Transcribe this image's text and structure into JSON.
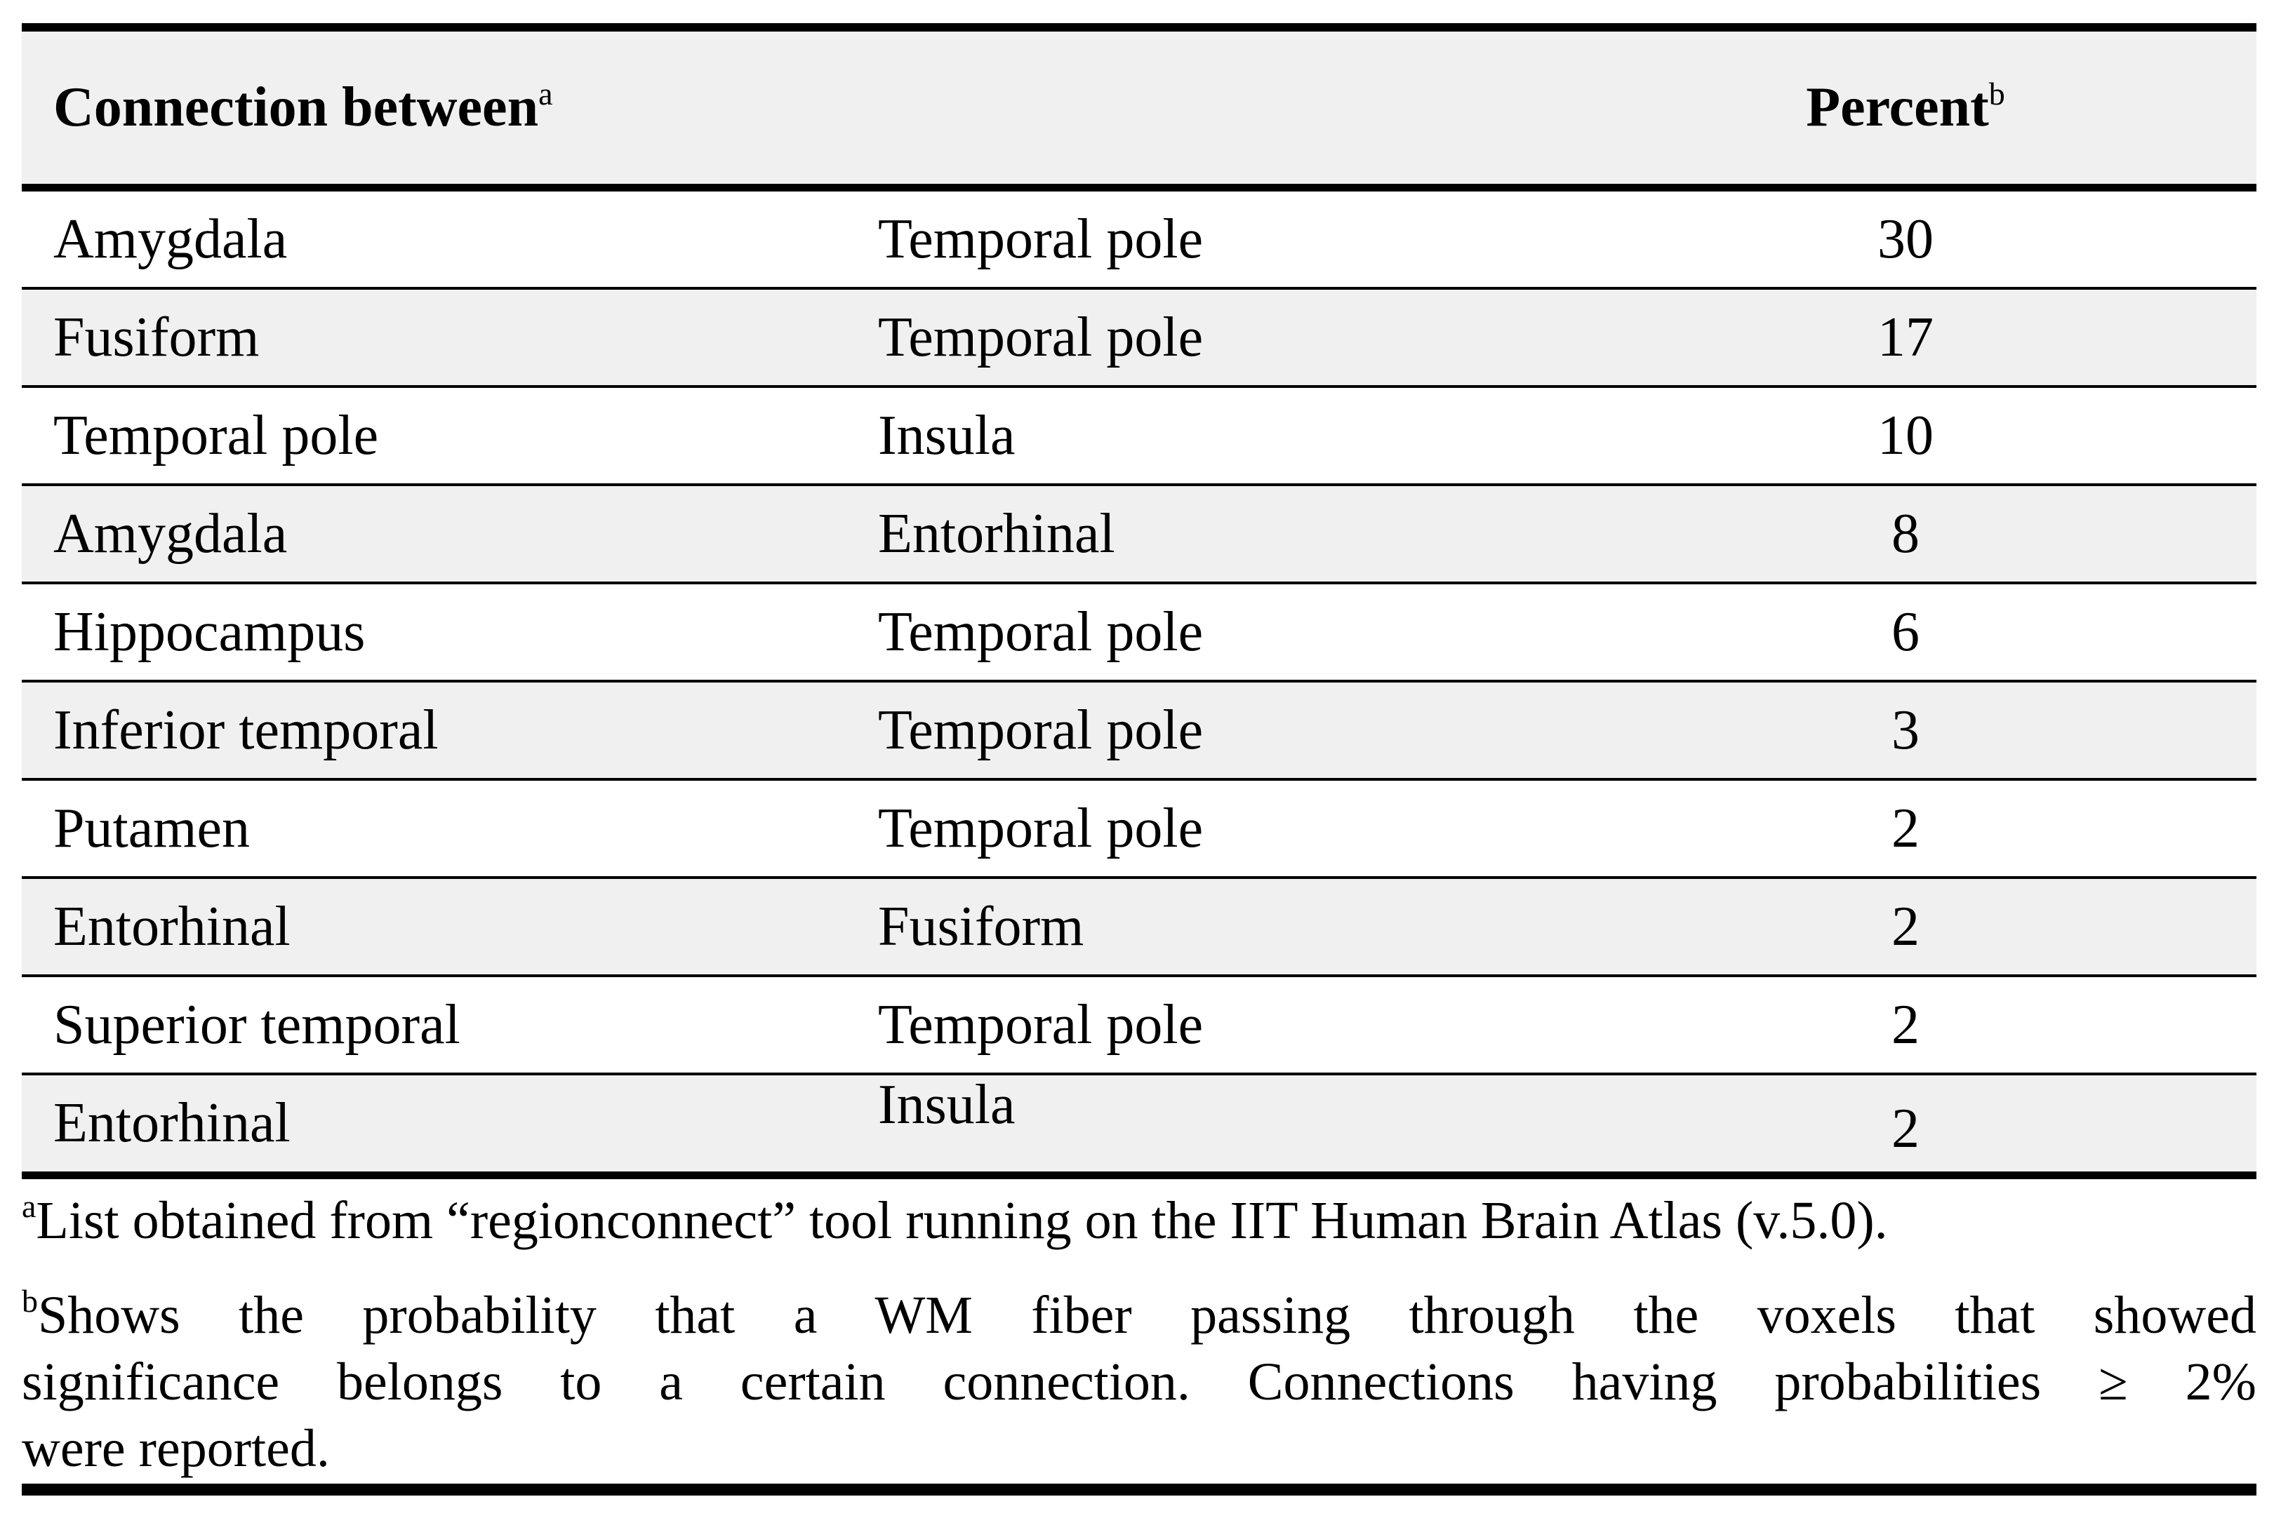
{
  "colors": {
    "stripe": "#f0f0f0",
    "rule": "#000000",
    "background": "#ffffff",
    "text": "#000000"
  },
  "table": {
    "header": {
      "connection_label": "Connection between",
      "connection_sup": "a",
      "percent_label": "Percent",
      "percent_sup": "b"
    },
    "rows": [
      {
        "region1": "Amygdala",
        "region2": "Temporal pole",
        "percent": "30"
      },
      {
        "region1": "Fusiform",
        "region2": "Temporal pole",
        "percent": "17"
      },
      {
        "region1": "Temporal pole",
        "region2": "Insula",
        "percent": "10"
      },
      {
        "region1": "Amygdala",
        "region2": "Entorhinal",
        "percent": "8"
      },
      {
        "region1": "Hippocampus",
        "region2": "Temporal pole",
        "percent": "6"
      },
      {
        "region1": "Inferior temporal",
        "region2": "Temporal pole",
        "percent": "3"
      },
      {
        "region1": "Putamen",
        "region2": "Temporal pole",
        "percent": "2"
      },
      {
        "region1": "Entorhinal",
        "region2": "Fusiform",
        "percent": "2"
      },
      {
        "region1": "Superior temporal",
        "region2": "Temporal pole",
        "percent": "2"
      },
      {
        "region1": "Entorhinal",
        "region2": "Insula",
        "percent": "2"
      }
    ]
  },
  "footnotes": {
    "a": {
      "sup": "a",
      "text": "List obtained from “regionconnect” tool running on the IIT Human Brain Atlas (v.5.0)."
    },
    "b": {
      "sup": "b",
      "line1": "Shows the probability that a WM fiber passing through the voxels that showed",
      "line2": "significance belongs to a certain connection. Connections having probabilities ≥ 2%",
      "line3": "were reported."
    }
  }
}
